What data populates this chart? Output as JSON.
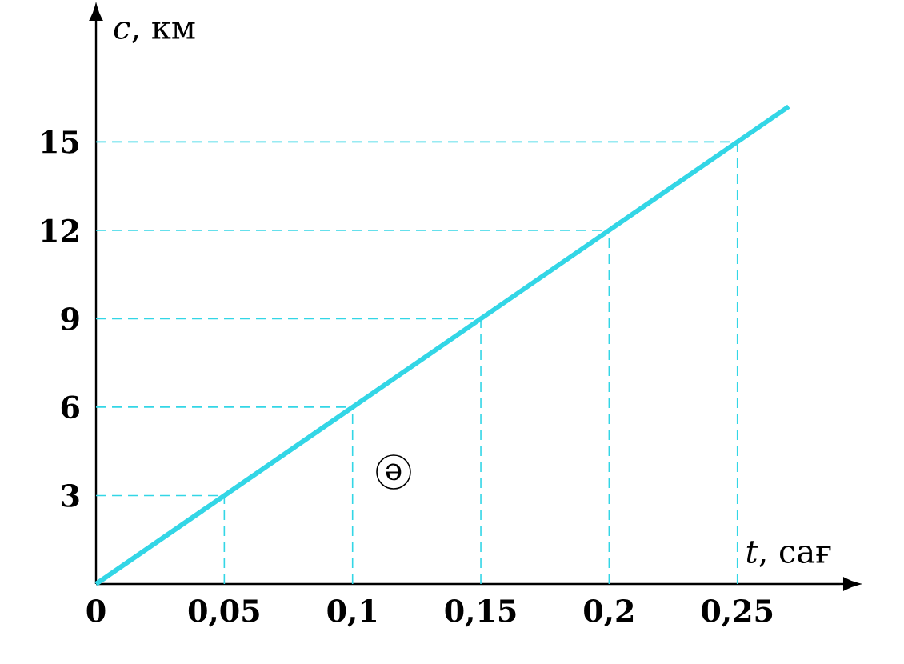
{
  "chart_data": {
    "type": "line",
    "xlabel": "*t*, сағ",
    "ylabel": "*c*, км",
    "x": [
      0,
      0.05,
      0.1,
      0.15,
      0.2,
      0.25,
      0.27
    ],
    "series": [
      {
        "color": "#33d6e6",
        "values": [
          0,
          3,
          6,
          9,
          12,
          15,
          16.2
        ]
      }
    ],
    "xlim": [
      0,
      0.29
    ],
    "ylim": [
      0,
      19
    ],
    "xticks": [
      0,
      {
        "value": 0.05,
        "label": "0,05"
      },
      {
        "value": 0.1,
        "label": "0,1"
      },
      {
        "value": 0.15,
        "label": "0,15"
      },
      {
        "value": 0.2,
        "label": "0,2"
      },
      {
        "value": 0.25,
        "label": "0,25"
      }
    ],
    "yticks": [
      3,
      6,
      9,
      12,
      15
    ],
    "ref_lines": [
      {
        "axis": "x",
        "value": 0.05,
        "color": "#33d6e6",
        "line_style": "dashed"
      },
      {
        "axis": "x",
        "value": 0.1,
        "color": "#33d6e6",
        "line_style": "dashed"
      },
      {
        "axis": "x",
        "value": 0.15,
        "color": "#33d6e6",
        "line_style": "dashed"
      },
      {
        "axis": "x",
        "value": 0.2,
        "color": "#33d6e6",
        "line_style": "dashed"
      },
      {
        "axis": "x",
        "value": 0.25,
        "color": "#33d6e6",
        "line_style": "dashed"
      },
      {
        "axis": "y",
        "value": 3,
        "color": "#33d6e6",
        "line_style": "dashed"
      },
      {
        "axis": "y",
        "value": 6,
        "color": "#33d6e6",
        "line_style": "dashed"
      },
      {
        "axis": "y",
        "value": 9,
        "color": "#33d6e6",
        "line_style": "dashed"
      },
      {
        "axis": "y",
        "value": 12,
        "color": "#33d6e6",
        "line_style": "dashed"
      },
      {
        "axis": "y",
        "value": 15,
        "color": "#33d6e6",
        "line_style": "dashed"
      }
    ],
    "annotations": [
      "ә"
    ],
    "grid": false,
    "marker": "none",
    "line_style": "solid"
  }
}
